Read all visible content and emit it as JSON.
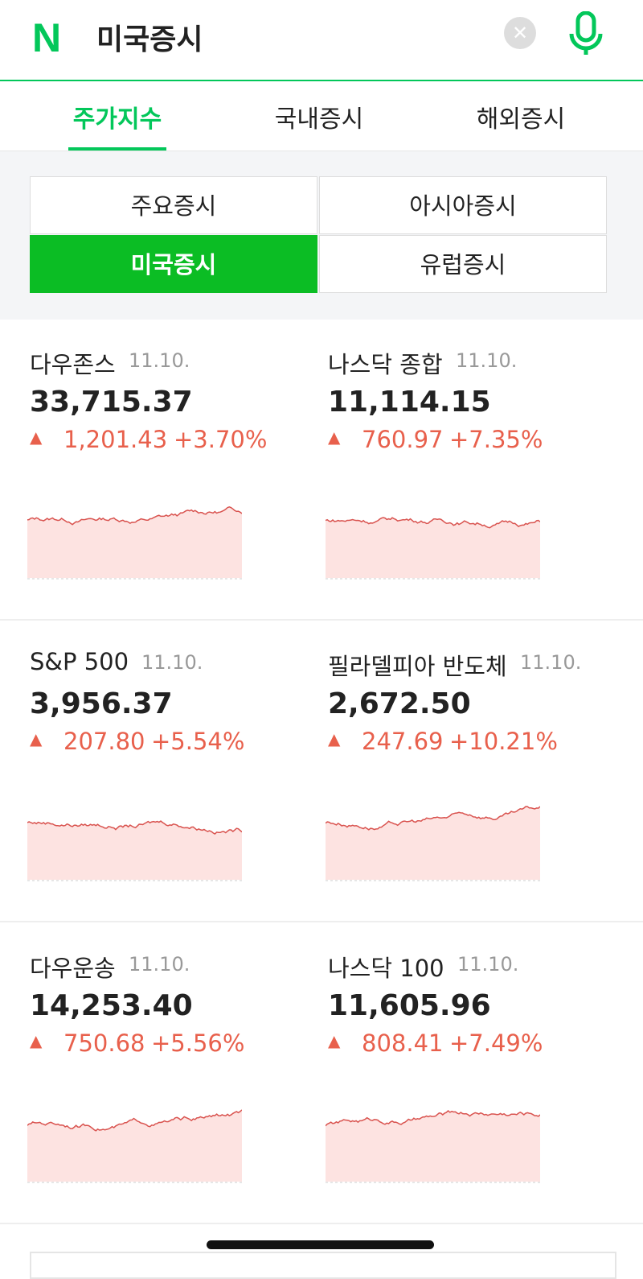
{
  "header": {
    "logo": "N",
    "query": "미국증시"
  },
  "tabs": [
    "주가지수",
    "국내증시",
    "해외증시"
  ],
  "segments": [
    "주요증시",
    "아시아증시",
    "미국증시",
    "유럽증시"
  ],
  "indices": [
    {
      "name": "다우존스",
      "date": "11.10.",
      "value": "33,715.37",
      "change": "1,201.43",
      "rate": "+3.70%"
    },
    {
      "name": "나스닥 종합",
      "date": "11.10.",
      "value": "11,114.15",
      "change": "760.97",
      "rate": "+7.35%"
    },
    {
      "name": "S&P 500",
      "date": "11.10.",
      "value": "3,956.37",
      "change": "207.80",
      "rate": "+5.54%"
    },
    {
      "name": "필라델피아 반도체",
      "date": "11.10.",
      "value": "2,672.50",
      "change": "247.69",
      "rate": "+10.21%"
    },
    {
      "name": "다우운송",
      "date": "11.10.",
      "value": "14,253.40",
      "change": "750.68",
      "rate": "+5.56%"
    },
    {
      "name": "나스닥 100",
      "date": "11.10.",
      "value": "11,605.96",
      "change": "808.41",
      "rate": "+7.49%"
    }
  ]
}
